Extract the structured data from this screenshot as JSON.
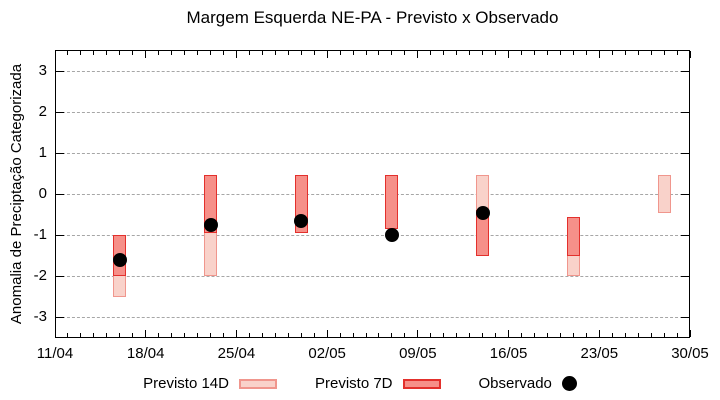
{
  "chart_data": {
    "type": "range-bar",
    "title": "Margem Esquerda NE-PA - Previsto x Observado",
    "ylabel": "Anomalia de Preciptação Categorizada",
    "xlabel": "",
    "ylim": [
      -3.5,
      3.5
    ],
    "y_ticks": [
      3,
      2,
      1,
      0,
      -1,
      -2,
      -3
    ],
    "grid": "horizontal-dashed",
    "x_axis": {
      "tick_labels": [
        "11/04",
        "18/04",
        "25/04",
        "02/05",
        "09/05",
        "16/05",
        "23/05",
        "30/05"
      ],
      "tick_days": [
        0,
        7,
        14,
        21,
        28,
        35,
        42,
        49
      ],
      "total_days": 49,
      "minor_tick_interval_days": 1,
      "major_tick_interval_days": 7
    },
    "clusters": [
      {
        "date": "16/04",
        "day": 5,
        "previsto14": [
          -1.0,
          -2.5
        ],
        "previsto7": [
          -1.0,
          -2.0
        ],
        "observado": -1.6
      },
      {
        "date": "23/04",
        "day": 12,
        "previsto14": [
          0.45,
          -2.0
        ],
        "previsto7": [
          0.45,
          -0.95
        ],
        "observado": -0.75
      },
      {
        "date": "30/04",
        "day": 19,
        "previsto14": [
          0.45,
          -0.95
        ],
        "previsto7": [
          0.45,
          -0.95
        ],
        "observado": -0.65
      },
      {
        "date": "07/05",
        "day": 26,
        "previsto14": [
          0.45,
          -0.85
        ],
        "previsto7": [
          0.45,
          -0.85
        ],
        "observado": -1.0
      },
      {
        "date": "14/05",
        "day": 33,
        "previsto14": [
          0.45,
          -1.5
        ],
        "previsto7": [
          -0.4,
          -1.5
        ],
        "observado": -0.45
      },
      {
        "date": "21/05",
        "day": 40,
        "previsto14": [
          -0.55,
          -2.0
        ],
        "previsto7": [
          -0.55,
          -1.5
        ],
        "observado": null
      },
      {
        "date": "28/05",
        "day": 47,
        "previsto14": [
          0.45,
          -0.45
        ],
        "previsto7": null,
        "observado": null
      }
    ],
    "colors": {
      "previsto14_fill": "#f9d2ca",
      "previsto14_border": "#f0968d",
      "previsto7_fill": "#f69089",
      "previsto7_border": "#e3302c",
      "observado": "#000000",
      "grid": "#a6a6a6",
      "axis": "#000000"
    },
    "legend": {
      "position": "bottom",
      "items": [
        {
          "label": "Previsto 14D",
          "marker": "previsto14"
        },
        {
          "label": "Previsto 7D",
          "marker": "previsto7"
        },
        {
          "label": "Observado",
          "marker": "observado"
        }
      ]
    }
  }
}
